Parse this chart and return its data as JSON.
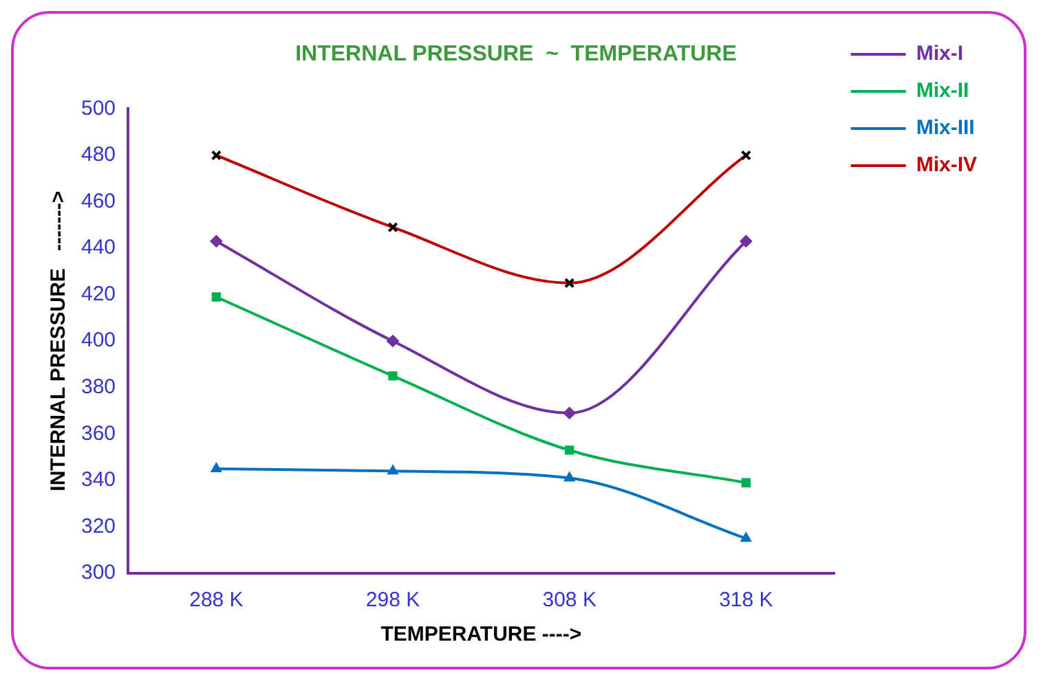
{
  "chart_data": {
    "type": "line",
    "title": "INTERNAL PRESSURE  ~  TEMPERATURE",
    "xlabel": "TEMPERATURE ---->",
    "ylabel": "INTERNAL PRESSURE   ------->",
    "categories": [
      "288 K",
      "298 K",
      "308 K",
      "318 K"
    ],
    "series": [
      {
        "name": "Mix-I",
        "color": "#7030a0",
        "marker": "diamond",
        "values": [
          443,
          400,
          369,
          443
        ]
      },
      {
        "name": "Mix-II",
        "color": "#00b050",
        "marker": "square",
        "values": [
          419,
          385,
          353,
          339
        ]
      },
      {
        "name": "Mix-III",
        "color": "#0070c0",
        "marker": "triangle",
        "values": [
          345,
          344,
          341,
          315
        ]
      },
      {
        "name": "Mix-IV",
        "color": "#c00000",
        "marker": "cross",
        "values": [
          480,
          449,
          425,
          480
        ]
      }
    ],
    "ylim": [
      300,
      500
    ],
    "yticks": [
      300,
      320,
      340,
      360,
      380,
      400,
      420,
      440,
      460,
      480,
      500
    ],
    "grid": false,
    "legend": "right"
  }
}
